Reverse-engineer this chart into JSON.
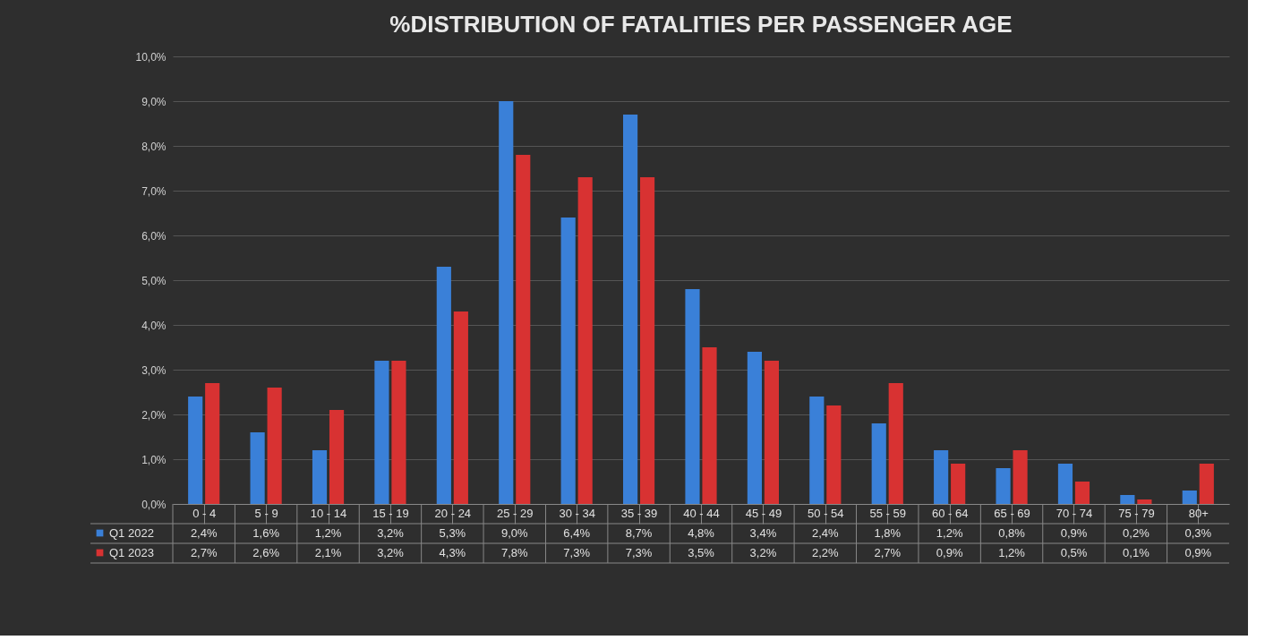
{
  "chart_data": {
    "type": "bar",
    "title": "%DISTRIBUTION OF FATALITIES PER PASSENGER AGE",
    "categories": [
      "0 - 4",
      "5 - 9",
      "10 - 14",
      "15 - 19",
      "20 - 24",
      "25 - 29",
      "30 - 34",
      "35 - 39",
      "40 - 44",
      "45 - 49",
      "50 - 54",
      "55 - 59",
      "60 - 64",
      "65 - 69",
      "70 - 74",
      "75 - 79",
      "80+"
    ],
    "series": [
      {
        "name": "Q1 2022",
        "color": "#3a80d8",
        "values": [
          2.4,
          1.6,
          1.2,
          3.2,
          5.3,
          9.0,
          6.4,
          8.7,
          4.8,
          3.4,
          2.4,
          1.8,
          1.2,
          0.8,
          0.9,
          0.2,
          0.3
        ],
        "value_labels": [
          "2,4%",
          "1,6%",
          "1,2%",
          "3,2%",
          "5,3%",
          "9,0%",
          "6,4%",
          "8,7%",
          "4,8%",
          "3,4%",
          "2,4%",
          "1,8%",
          "1,2%",
          "0,8%",
          "0,9%",
          "0,2%",
          "0,3%"
        ]
      },
      {
        "name": "Q1 2023",
        "color": "#d83232",
        "values": [
          2.7,
          2.6,
          2.1,
          3.2,
          4.3,
          7.8,
          7.3,
          7.3,
          3.5,
          3.2,
          2.2,
          2.7,
          0.9,
          1.2,
          0.5,
          0.1,
          0.9
        ],
        "value_labels": [
          "2,7%",
          "2,6%",
          "2,1%",
          "3,2%",
          "4,3%",
          "7,8%",
          "7,3%",
          "7,3%",
          "3,5%",
          "3,2%",
          "2,2%",
          "2,7%",
          "0,9%",
          "1,2%",
          "0,5%",
          "0,1%",
          "0,9%"
        ]
      }
    ],
    "ylim": [
      0,
      10
    ],
    "yticks": [
      {
        "value": 0,
        "label": "0,0%"
      },
      {
        "value": 1,
        "label": "1,0%"
      },
      {
        "value": 2,
        "label": "2,0%"
      },
      {
        "value": 3,
        "label": "3,0%"
      },
      {
        "value": 4,
        "label": "4,0%"
      },
      {
        "value": 5,
        "label": "5,0%"
      },
      {
        "value": 6,
        "label": "6,0%"
      },
      {
        "value": 7,
        "label": "7,0%"
      },
      {
        "value": 8,
        "label": "8,0%"
      },
      {
        "value": 9,
        "label": "9,0%"
      },
      {
        "value": 10,
        "label": "10,0%"
      }
    ],
    "grid": "y",
    "legend": "bottom left"
  }
}
